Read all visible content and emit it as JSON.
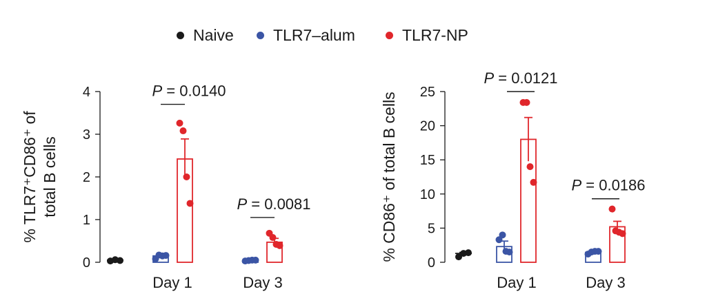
{
  "legend": {
    "items": [
      {
        "label": "Naive",
        "color": "#1a1a1a"
      },
      {
        "label": "TLR7–alum",
        "color": "#3b55a5"
      },
      {
        "label": "TLR7-NP",
        "color": "#e0262b"
      }
    ]
  },
  "chart_data": [
    {
      "type": "bar",
      "title": "",
      "ylabel_line1": "% TLR7⁺CD86⁺ of",
      "ylabel_line2": "total B cells",
      "ylim": [
        0,
        4
      ],
      "yticks": [
        "0",
        "1",
        "2",
        "3",
        "4"
      ],
      "xticks": [
        "Day 1",
        "Day 3"
      ],
      "error_bars": "mean ± s.e.m.",
      "groups": [
        {
          "day": "",
          "series": "Naive",
          "color": "#1a1a1a",
          "mean": 0.05,
          "err": 0.0,
          "points": [
            0.03,
            0.06,
            0.04
          ]
        },
        {
          "day": "Day 1",
          "series": "TLR7–alum",
          "color": "#3b55a5",
          "mean": 0.15,
          "err": 0.04,
          "points": [
            0.08,
            0.17,
            0.15,
            0.16
          ]
        },
        {
          "day": "Day 1",
          "series": "TLR7-NP",
          "color": "#e0262b",
          "mean": 2.42,
          "err": 0.47,
          "points": [
            3.26,
            3.08,
            2.0,
            1.38
          ]
        },
        {
          "day": "Day 3",
          "series": "TLR7–alum",
          "color": "#3b55a5",
          "mean": 0.04,
          "err": 0.01,
          "points": [
            0.03,
            0.04,
            0.05,
            0.05
          ]
        },
        {
          "day": "Day 3",
          "series": "TLR7-NP",
          "color": "#e0262b",
          "mean": 0.47,
          "err": 0.09,
          "points": [
            0.68,
            0.58,
            0.42,
            0.39
          ]
        }
      ],
      "annotations": [
        {
          "label": "P = 0.0140",
          "between": [
            "Day 1 TLR7–alum",
            "Day 1 TLR7-NP"
          ],
          "y": 3.7
        },
        {
          "label": "P = 0.0081",
          "between": [
            "Day 3 TLR7–alum",
            "Day 3 TLR7-NP"
          ],
          "y": 1.05
        }
      ]
    },
    {
      "type": "bar",
      "title": "",
      "ylabel_line1": "% CD86⁺ of total B cells",
      "ylabel_line2": "",
      "ylim": [
        0,
        25
      ],
      "yticks": [
        "0",
        "5",
        "10",
        "15",
        "20",
        "25"
      ],
      "xticks": [
        "Day 1",
        "Day 3"
      ],
      "error_bars": "mean ± s.e.m.",
      "groups": [
        {
          "day": "",
          "series": "Naive",
          "color": "#1a1a1a",
          "mean": 1.3,
          "err": 0.15,
          "points": [
            0.8,
            1.3,
            1.4
          ]
        },
        {
          "day": "Day 1",
          "series": "TLR7–alum",
          "color": "#3b55a5",
          "mean": 2.3,
          "err": 0.8,
          "points": [
            3.3,
            4.0,
            1.6,
            1.5
          ]
        },
        {
          "day": "Day 1",
          "series": "TLR7-NP",
          "color": "#e0262b",
          "mean": 18.0,
          "err": 3.2,
          "points": [
            23.4,
            23.4,
            14.0,
            11.7
          ]
        },
        {
          "day": "Day 3",
          "series": "TLR7–alum",
          "color": "#3b55a5",
          "mean": 1.45,
          "err": 0.2,
          "points": [
            1.2,
            1.5,
            1.6,
            1.6
          ]
        },
        {
          "day": "Day 3",
          "series": "TLR7-NP",
          "color": "#e0262b",
          "mean": 5.2,
          "err": 0.8,
          "points": [
            7.8,
            4.6,
            4.4,
            4.2
          ]
        }
      ],
      "annotations": [
        {
          "label": "P = 0.0121",
          "between": [
            "Day 1 TLR7–alum",
            "Day 1 TLR7-NP"
          ],
          "y": 25.0
        },
        {
          "label": "P = 0.0186",
          "between": [
            "Day 3 TLR7–alum",
            "Day 3 TLR7-NP"
          ],
          "y": 9.3
        }
      ]
    }
  ]
}
